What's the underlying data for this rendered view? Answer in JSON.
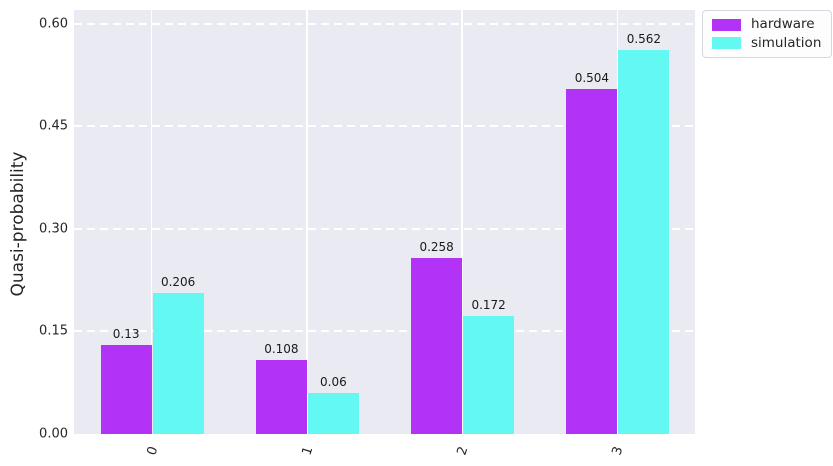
{
  "chart_data": {
    "type": "bar",
    "title": "",
    "xlabel": "",
    "ylabel": "Quasi-probability",
    "categories": [
      "0",
      "1",
      "2",
      "3"
    ],
    "series": [
      {
        "name": "hardware",
        "color": "#b232f5",
        "values": [
          0.13,
          0.108,
          0.258,
          0.504
        ],
        "value_labels": [
          "0.13",
          "0.108",
          "0.258",
          "0.504"
        ]
      },
      {
        "name": "simulation",
        "color": "#63f8f2",
        "values": [
          0.206,
          0.06,
          0.172,
          0.562
        ],
        "value_labels": [
          "0.206",
          "0.06",
          "0.172",
          "0.562"
        ]
      }
    ],
    "yticks": [
      {
        "value": 0.0,
        "label": "0.00"
      },
      {
        "value": 0.15,
        "label": "0.15"
      },
      {
        "value": 0.3,
        "label": "0.30"
      },
      {
        "value": 0.45,
        "label": "0.45"
      },
      {
        "value": 0.6,
        "label": "0.60"
      }
    ],
    "ylim": [
      0,
      0.62
    ],
    "grid": true,
    "grid_color": "#ffffff",
    "plot_background": "#eaeaf2",
    "text_color": "#262626",
    "legend_position": "upper-right-outside",
    "xtick_rotation_deg": 72
  }
}
